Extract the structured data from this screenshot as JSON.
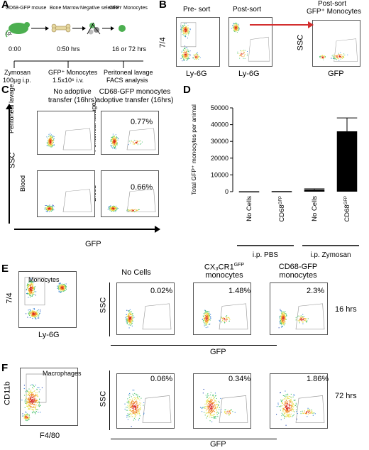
{
  "panels": {
    "A": {
      "label": "A",
      "flow": [
        "CD68-GFP mouse",
        "Bone Marrow",
        "Negative selection",
        "GFP⁺ Monocytes"
      ],
      "timeline": {
        "t0": "0:00",
        "t1": "0:50 hrs",
        "t2": "16 or 72 hrs",
        "s0a": "Zymosan",
        "s0b": "100μg i.p.",
        "s1a": "GFP⁺ Monocytes",
        "s1b": "1.5x10⁶ i.v.",
        "s2a": "Peritoneal lavage",
        "s2b": "FACS analysis"
      },
      "injection": "i.p."
    },
    "B": {
      "label": "B",
      "pre_sort": "Pre- sort",
      "post_sort": "Post-sort",
      "post_sort_gfp": "Post-sort",
      "post_sort_gfp2": "GFP⁺ Monocytes",
      "ylabel": "7/4",
      "xlabel": "Ly-6G",
      "ylabel3": "SSC",
      "xlabel3": "GFP"
    },
    "C": {
      "label": "C",
      "col1": "No adoptive",
      "col1b": "transfer (16hrs)",
      "col2": "CD68-GFP monocytes",
      "col2b": "adoptive transfer (16hrs)",
      "row1": "Peritoneal lavage",
      "row2": "Blood",
      "ylabel": "SSC",
      "xlabel": "GFP",
      "pct1": "0.77%",
      "pct2": "0.66%"
    },
    "D": {
      "label": "D"
    },
    "E": {
      "label": "E",
      "gate_label": "Monocytes",
      "ylabel": "7/4",
      "xlabel": "Ly-6G",
      "col1": "No Cells",
      "col2a": "CX₃CR1",
      "col2sup": "GFP",
      "col2b": "monocytes",
      "col3a": "CD68-GFP",
      "col3b": "monocytes",
      "pct1": "0.02%",
      "pct2": "1.48%",
      "pct3": "2.3%",
      "time": "16 hrs",
      "ylabel2": "SSC",
      "xlabel2": "GFP"
    },
    "F": {
      "label": "F",
      "gate_label": "Macrophages",
      "ylabel": "CD11b",
      "xlabel": "F4/80",
      "pct1": "0.06%",
      "pct2": "0.34%",
      "pct3": "1.86%",
      "time": "72 hrs",
      "ylabel2": "SSC",
      "xlabel2": "GFP"
    }
  },
  "chart_data": {
    "type": "bar",
    "categories": [
      "No Cells",
      "CD68GFP",
      "No Cells",
      "CD68GFP"
    ],
    "values": [
      200,
      300,
      1200,
      36000
    ],
    "errors": [
      0,
      0,
      500,
      8000
    ],
    "ylabel": "Total GFP⁺ monocytes per animal",
    "ylim": [
      0,
      50000
    ],
    "yticks": [
      0,
      10000,
      20000,
      30000,
      40000,
      50000
    ],
    "groups": [
      {
        "label": "i.p. PBS"
      },
      {
        "label": "i.p. Zymosan"
      }
    ],
    "bar_color": "#000000"
  }
}
